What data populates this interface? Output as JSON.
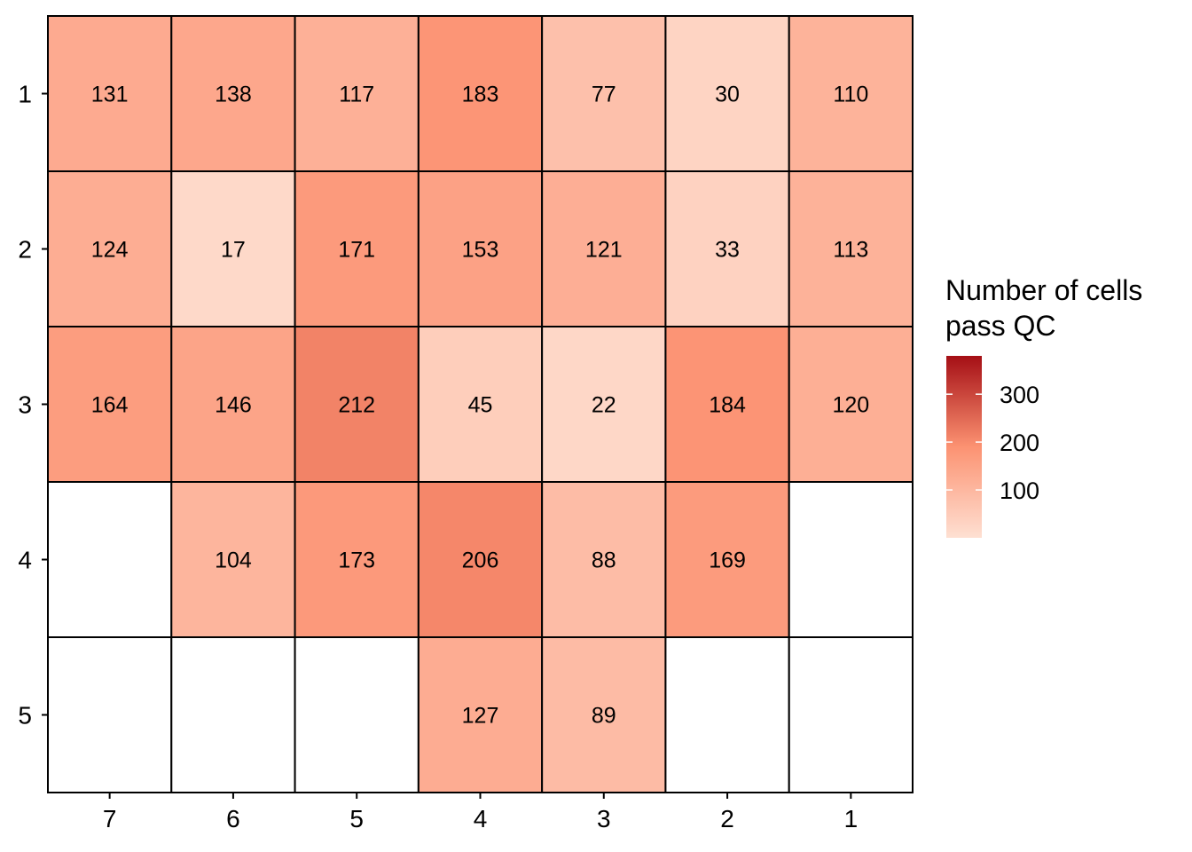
{
  "chart_data": {
    "type": "heatmap",
    "x_categories": [
      "7",
      "6",
      "5",
      "4",
      "3",
      "2",
      "1"
    ],
    "y_categories": [
      "1",
      "2",
      "3",
      "4",
      "5"
    ],
    "values": [
      [
        131,
        138,
        117,
        183,
        77,
        30,
        110
      ],
      [
        124,
        17,
        171,
        153,
        121,
        33,
        113
      ],
      [
        164,
        146,
        212,
        45,
        22,
        184,
        120
      ],
      [
        null,
        104,
        173,
        206,
        88,
        169,
        null
      ],
      [
        null,
        null,
        null,
        127,
        89,
        null,
        null
      ]
    ],
    "title": "",
    "xlabel": "",
    "ylabel": "",
    "legend": {
      "title_lines": [
        "Number of cells",
        "pass QC"
      ],
      "ticks": [
        100,
        200,
        300
      ],
      "range": [
        0,
        380
      ],
      "placement": "right"
    },
    "colors": {
      "low": "#fee0d2",
      "mid": "#fc9272",
      "high": "#a50f15",
      "missing": "#ffffff",
      "border": "#000000"
    }
  }
}
